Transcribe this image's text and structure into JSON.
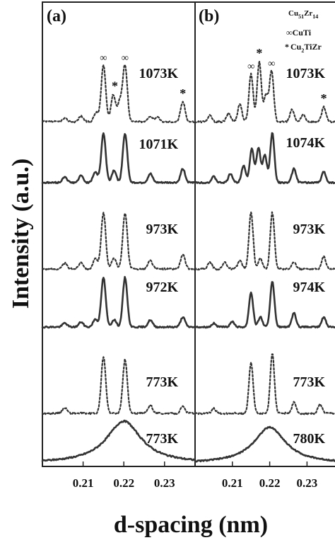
{
  "chart_data": [
    {
      "panel_label": "(a)",
      "type": "line",
      "xlabel": "d-spacing (nm)",
      "ylabel": "Intensity (a.u.)",
      "x_ticks": [
        "0.21",
        "0.22",
        "0.23"
      ],
      "xlim": [
        0.2,
        0.2375
      ],
      "series": [
        {
          "name": "1073K",
          "style": "dotted",
          "peaks": [
            [
              0.2055,
              0.06
            ],
            [
              0.2095,
              0.1
            ],
            [
              0.2132,
              0.16
            ],
            [
              0.215,
              1.0
            ],
            [
              0.2174,
              0.48
            ],
            [
              0.219,
              0.35
            ],
            [
              0.2203,
              1.0
            ],
            [
              0.2265,
              0.1
            ],
            [
              0.2282,
              0.08
            ],
            [
              0.2345,
              0.35
            ]
          ],
          "annotations": [
            {
              "text": "∞",
              "x": 0.215
            },
            {
              "text": "*",
              "x": 0.2178
            },
            {
              "text": "∞",
              "x": 0.2203
            },
            {
              "text": "*",
              "x": 0.2345
            }
          ]
        },
        {
          "name": "1071K",
          "style": "solid",
          "peaks": [
            [
              0.2055,
              0.12
            ],
            [
              0.2095,
              0.14
            ],
            [
              0.213,
              0.22
            ],
            [
              0.215,
              1.0
            ],
            [
              0.2176,
              0.25
            ],
            [
              0.2203,
              1.0
            ],
            [
              0.2265,
              0.18
            ],
            [
              0.2345,
              0.28
            ]
          ]
        },
        {
          "name": "973K",
          "style": "dotted",
          "peaks": [
            [
              0.2055,
              0.1
            ],
            [
              0.2095,
              0.12
            ],
            [
              0.213,
              0.18
            ],
            [
              0.215,
              1.0
            ],
            [
              0.2176,
              0.2
            ],
            [
              0.2203,
              1.0
            ],
            [
              0.2265,
              0.15
            ],
            [
              0.2345,
              0.25
            ]
          ]
        },
        {
          "name": "972K",
          "style": "solid",
          "peaks": [
            [
              0.2055,
              0.08
            ],
            [
              0.2095,
              0.1
            ],
            [
              0.213,
              0.16
            ],
            [
              0.215,
              1.0
            ],
            [
              0.2176,
              0.15
            ],
            [
              0.2203,
              1.0
            ],
            [
              0.2265,
              0.14
            ],
            [
              0.2345,
              0.2
            ]
          ]
        },
        {
          "name": "773K",
          "style": "dotted",
          "peaks": [
            [
              0.2055,
              0.1
            ],
            [
              0.215,
              1.0
            ],
            [
              0.2203,
              0.95
            ],
            [
              0.2265,
              0.15
            ],
            [
              0.2345,
              0.12
            ]
          ]
        },
        {
          "name": "773K",
          "style": "solid",
          "broad_peak": true,
          "peaks": [
            [
              0.22,
              1.0
            ]
          ]
        }
      ]
    },
    {
      "panel_label": "(b)",
      "type": "line",
      "xlabel": "d-spacing (nm)",
      "ylabel": "Intensity (a.u.)",
      "x_ticks": [
        "0.21",
        "0.22",
        "0.23"
      ],
      "xlim": [
        0.2,
        0.2375
      ],
      "legend": [
        {
          "symbol": "",
          "text": "Cu",
          "sub1": "51",
          "text2": "Zr",
          "sub2": "14"
        },
        {
          "symbol": "∞",
          "text": "CuTi"
        },
        {
          "symbol": "*",
          "text": "Cu",
          "sub1": "2",
          "text2": "TiZr"
        }
      ],
      "series": [
        {
          "name": "1073K",
          "style": "dotted",
          "peaks": [
            [
              0.204,
              0.1
            ],
            [
              0.209,
              0.14
            ],
            [
              0.212,
              0.3
            ],
            [
              0.215,
              0.8
            ],
            [
              0.2172,
              1.0
            ],
            [
              0.219,
              0.45
            ],
            [
              0.2205,
              0.85
            ],
            [
              0.226,
              0.2
            ],
            [
              0.229,
              0.12
            ],
            [
              0.2345,
              0.25
            ]
          ],
          "annotations": [
            {
              "text": "∞",
              "x": 0.215
            },
            {
              "text": "*",
              "x": 0.2172
            },
            {
              "text": "∞",
              "x": 0.2205
            },
            {
              "text": "*",
              "x": 0.2345
            }
          ]
        },
        {
          "name": "1074K",
          "style": "solid",
          "peaks": [
            [
              0.205,
              0.12
            ],
            [
              0.2095,
              0.18
            ],
            [
              0.213,
              0.35
            ],
            [
              0.2152,
              0.68
            ],
            [
              0.217,
              0.7
            ],
            [
              0.2187,
              0.55
            ],
            [
              0.2207,
              1.0
            ],
            [
              0.2265,
              0.28
            ],
            [
              0.2345,
              0.22
            ]
          ]
        },
        {
          "name": "973K",
          "style": "dotted",
          "peaks": [
            [
              0.204,
              0.12
            ],
            [
              0.208,
              0.12
            ],
            [
              0.212,
              0.15
            ],
            [
              0.215,
              1.0
            ],
            [
              0.2175,
              0.18
            ],
            [
              0.2207,
              1.0
            ],
            [
              0.2265,
              0.12
            ],
            [
              0.2345,
              0.22
            ]
          ]
        },
        {
          "name": "974K",
          "style": "solid",
          "peaks": [
            [
              0.205,
              0.08
            ],
            [
              0.21,
              0.12
            ],
            [
              0.215,
              0.75
            ],
            [
              0.2175,
              0.22
            ],
            [
              0.2207,
              1.0
            ],
            [
              0.2265,
              0.3
            ],
            [
              0.2345,
              0.22
            ]
          ]
        },
        {
          "name": "773K",
          "style": "dotted",
          "peaks": [
            [
              0.205,
              0.08
            ],
            [
              0.215,
              0.85
            ],
            [
              0.2207,
              1.0
            ],
            [
              0.2265,
              0.18
            ],
            [
              0.2335,
              0.15
            ]
          ]
        },
        {
          "name": "780K",
          "style": "solid",
          "broad_peak": true,
          "peaks": [
            [
              0.22,
              1.0
            ]
          ]
        }
      ]
    }
  ]
}
